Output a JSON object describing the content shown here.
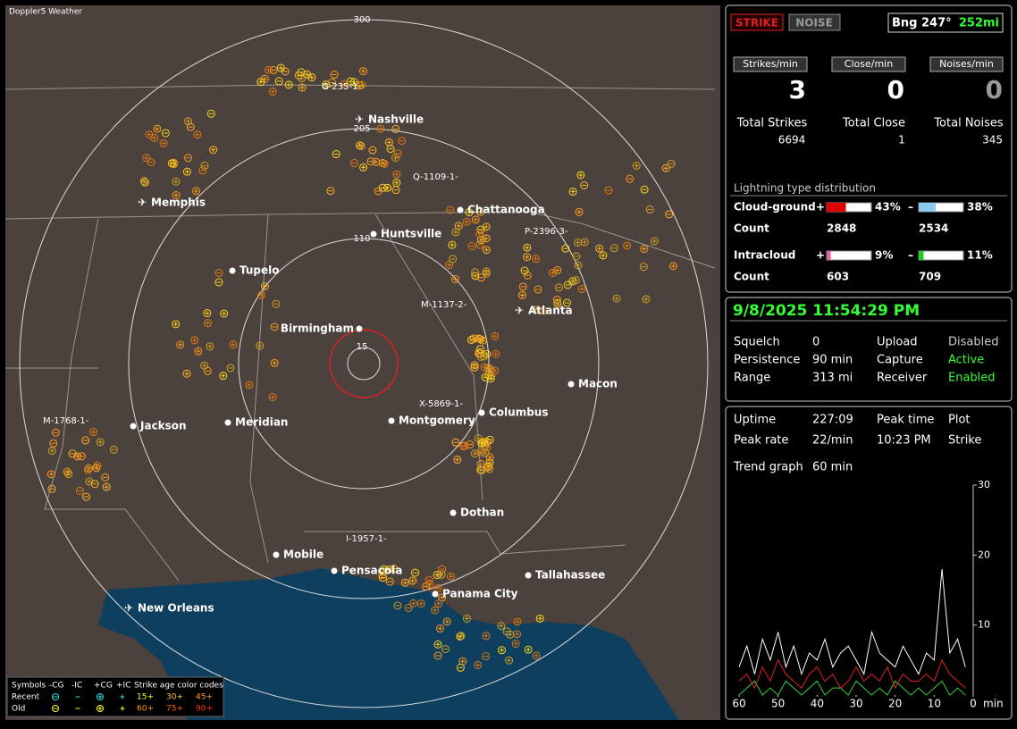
{
  "app_title": "Doppler5 Weather",
  "map": {
    "range_labels": [
      "15",
      "110",
      "205",
      "300"
    ],
    "cities": [
      "Nashville",
      "Memphis",
      "Chattanooga",
      "Huntsville",
      "Tupelo",
      "Atlanta",
      "Birmingham",
      "Macon",
      "Jackson",
      "Meridian",
      "Montgomery",
      "Columbus",
      "Dothan",
      "Mobile",
      "Pensacola",
      "Tallahassee",
      "Panama City",
      "New Orleans"
    ],
    "strike_labels": [
      "G-235-1-",
      "Q-1109-1-",
      "P-2396-3-",
      "M-1137-2-",
      "X-5869-1-",
      "M-1768-1-",
      "I-1957-1-"
    ]
  },
  "legend": {
    "symbols": "Symbols",
    "types": [
      "-CG",
      "-IC",
      "+CG",
      "+IC"
    ],
    "age_title": "Strike age color codes",
    "recent": "Recent",
    "old": "Old",
    "recent_ages": [
      "15+",
      "30+",
      "45+"
    ],
    "old_ages": [
      "60+",
      "75+",
      "90+"
    ]
  },
  "status": {
    "strike_button": "STRIKE",
    "noise_button": "NOISE",
    "bearing": "Bng 247°",
    "distance": "252mi",
    "rates": [
      {
        "label": "Strikes/min",
        "value": "3"
      },
      {
        "label": "Close/min",
        "value": "0"
      },
      {
        "label": "Noises/min",
        "value": "0"
      }
    ],
    "totals": [
      {
        "label": "Total Strikes",
        "value": "6694"
      },
      {
        "label": "Total Close",
        "value": "1"
      },
      {
        "label": "Total Noises",
        "value": "345"
      }
    ],
    "distribution": {
      "title": "Lightning type distribution",
      "rows": [
        {
          "label": "Cloud-ground",
          "plus_sign": "+",
          "plus_pct": {
            "value": 43,
            "label": "43%"
          },
          "minus_sign": "–",
          "minus_pct": {
            "value": 38,
            "label": "38%"
          },
          "count_label": "Count",
          "plus_count": "2848",
          "minus_count": "2534"
        },
        {
          "label": "Intracloud",
          "plus_sign": "+",
          "plus_pct": {
            "value": 9,
            "label": "9%"
          },
          "minus_sign": "–",
          "minus_pct": {
            "value": 11,
            "label": "11%"
          },
          "count_label": "Count",
          "plus_count": "603",
          "minus_count": "709"
        }
      ]
    }
  },
  "info": {
    "datetime": "9/8/2025 11:54:29 PM",
    "rows": [
      [
        "Squelch",
        "0",
        "Upload",
        "Disabled"
      ],
      [
        "Persistence",
        "90 min",
        "Capture",
        "Active"
      ],
      [
        "Range",
        "313 mi",
        "Receiver",
        "Enabled"
      ]
    ]
  },
  "stats": {
    "rows": [
      [
        "Uptime",
        "227:09",
        "Peak time",
        "Plot"
      ],
      [
        "Peak rate",
        "22/min",
        "10:23 PM",
        "Strike"
      ],
      [
        "Trend graph",
        "60 min"
      ]
    ]
  },
  "trend": {
    "ylim": [
      0,
      30
    ],
    "yticks": [
      30,
      20,
      10
    ],
    "xlim": [
      60,
      0
    ],
    "xticks": [
      60,
      50,
      40,
      30,
      20,
      10,
      0
    ],
    "x_unit": "min",
    "x": [
      60,
      58,
      56,
      54,
      52,
      50,
      48,
      46,
      44,
      42,
      40,
      38,
      36,
      34,
      32,
      30,
      28,
      26,
      24,
      22,
      20,
      18,
      16,
      14,
      12,
      10,
      8,
      6,
      4,
      2
    ],
    "series": [
      {
        "color": "#ffffff",
        "values": [
          4,
          7,
          3,
          8,
          5,
          9,
          4,
          7,
          3,
          6,
          5,
          8,
          4,
          6,
          7,
          5,
          3,
          9,
          6,
          5,
          4,
          7,
          5,
          3,
          6,
          5,
          18,
          6,
          8,
          4
        ]
      },
      {
        "color": "#e02020",
        "values": [
          2,
          3,
          1,
          4,
          2,
          5,
          3,
          2,
          1,
          3,
          4,
          2,
          3,
          1,
          2,
          4,
          2,
          3,
          2,
          4,
          1,
          3,
          2,
          2,
          3,
          2,
          5,
          3,
          2,
          1
        ]
      },
      {
        "color": "#30d040",
        "values": [
          0,
          1,
          2,
          0,
          1,
          0,
          2,
          1,
          0,
          1,
          2,
          0,
          1,
          1,
          0,
          2,
          1,
          0,
          1,
          0,
          2,
          1,
          0,
          1,
          0,
          1,
          2,
          0,
          1,
          0
        ]
      }
    ]
  }
}
